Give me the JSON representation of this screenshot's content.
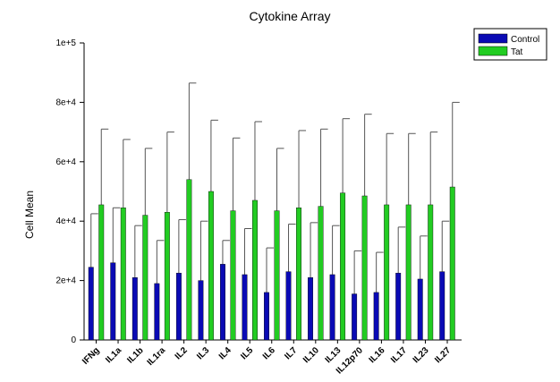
{
  "chart_data": {
    "type": "bar",
    "title": "Cytokine Array",
    "xlabel": "",
    "ylabel": "Cell Mean",
    "ylim": [
      0,
      100000
    ],
    "yticks": [
      0,
      20000,
      40000,
      60000,
      80000,
      100000
    ],
    "ytick_labels": [
      "0",
      "2e+4",
      "4e+4",
      "6e+4",
      "8e+4",
      "1e+5"
    ],
    "legend_position": "top-right",
    "categories": [
      "IFNg",
      "IL1a",
      "IL1b",
      "IL1ra",
      "IL2",
      "IL3",
      "IL4",
      "IL5",
      "IL6",
      "IL7",
      "IL10",
      "IL13",
      "IL12p70",
      "IL16",
      "IL17",
      "IL23",
      "IL27"
    ],
    "series": [
      {
        "name": "Control",
        "color": "#0a0ab4",
        "values": [
          24500,
          26000,
          21000,
          19000,
          22500,
          20000,
          25500,
          22000,
          16000,
          23000,
          21000,
          22000,
          15500,
          16000,
          22500,
          20500,
          23000
        ],
        "error_upper": [
          42500,
          44500,
          38500,
          33500,
          40500,
          40000,
          33500,
          37500,
          31000,
          39000,
          39500,
          38500,
          30000,
          29500,
          38000,
          35000,
          40000
        ]
      },
      {
        "name": "Tat",
        "color": "#22cc22",
        "values": [
          45500,
          44500,
          42000,
          43000,
          54000,
          50000,
          43500,
          47000,
          43500,
          44500,
          45000,
          49500,
          48500,
          45500,
          45500,
          45500,
          51500
        ],
        "error_upper": [
          71000,
          67500,
          64500,
          70000,
          86500,
          74000,
          68000,
          73500,
          64500,
          70500,
          71000,
          74500,
          76000,
          69500,
          69500,
          70000,
          80000
        ]
      }
    ]
  }
}
